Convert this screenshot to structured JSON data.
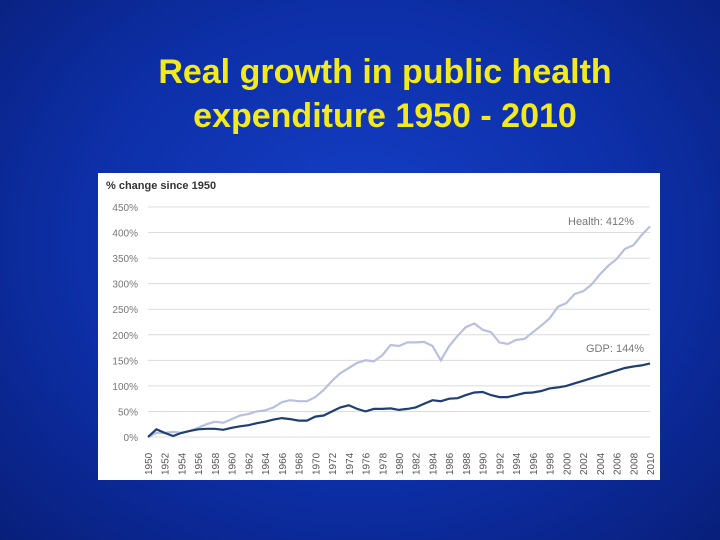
{
  "title": {
    "line1": "Real growth in public health",
    "line2": "expenditure 1950 - 2010"
  },
  "colors": {
    "title": "#f2ea1c",
    "health_line": "#b8c0dd",
    "gdp_line": "#1f3f73",
    "grid": "#dcdcdc"
  },
  "chart_data": {
    "type": "line",
    "title": "Real growth in public health expenditure 1950 - 2010",
    "ylabel": "% change since 1950",
    "xlabel": "",
    "ylim": [
      0,
      450
    ],
    "yticks": [
      0,
      50,
      100,
      150,
      200,
      250,
      300,
      350,
      400,
      450
    ],
    "ytick_labels": [
      "0%",
      "50%",
      "100%",
      "150%",
      "200%",
      "250%",
      "300%",
      "350%",
      "400%",
      "450%"
    ],
    "x": [
      1950,
      1951,
      1952,
      1953,
      1954,
      1955,
      1956,
      1957,
      1958,
      1959,
      1960,
      1961,
      1962,
      1963,
      1964,
      1965,
      1966,
      1967,
      1968,
      1969,
      1970,
      1971,
      1972,
      1973,
      1974,
      1975,
      1976,
      1977,
      1978,
      1979,
      1980,
      1981,
      1982,
      1983,
      1984,
      1985,
      1986,
      1987,
      1988,
      1989,
      1990,
      1991,
      1992,
      1993,
      1994,
      1995,
      1996,
      1997,
      1998,
      1999,
      2000,
      2001,
      2002,
      2003,
      2004,
      2005,
      2006,
      2007,
      2008,
      2009,
      2010
    ],
    "xtick_labels": [
      "1950",
      "1952",
      "1954",
      "1956",
      "1958",
      "1960",
      "1962",
      "1964",
      "1966",
      "1968",
      "1970",
      "1972",
      "1974",
      "1976",
      "1978",
      "1980",
      "1982",
      "1984",
      "1986",
      "1988",
      "1990",
      "1992",
      "1994",
      "1996",
      "1998",
      "2000",
      "2002",
      "2004",
      "2006",
      "2008",
      "2010"
    ],
    "series": [
      {
        "name": "Health",
        "annotation": "Health: 412%",
        "values": [
          0,
          8,
          8,
          10,
          8,
          12,
          18,
          25,
          30,
          28,
          35,
          42,
          45,
          50,
          52,
          58,
          68,
          72,
          70,
          70,
          78,
          92,
          110,
          125,
          135,
          145,
          150,
          148,
          160,
          180,
          178,
          185,
          185,
          186,
          178,
          150,
          178,
          198,
          215,
          222,
          210,
          205,
          185,
          182,
          190,
          192,
          205,
          218,
          232,
          255,
          262,
          280,
          285,
          298,
          318,
          335,
          348,
          368,
          375,
          395,
          412
        ]
      },
      {
        "name": "GDP",
        "annotation": "GDP: 144%",
        "values": [
          0,
          15,
          8,
          2,
          8,
          12,
          15,
          16,
          16,
          14,
          18,
          21,
          23,
          27,
          30,
          34,
          37,
          35,
          32,
          32,
          40,
          42,
          50,
          58,
          62,
          55,
          50,
          55,
          55,
          56,
          53,
          55,
          58,
          65,
          72,
          70,
          75,
          76,
          82,
          87,
          88,
          82,
          78,
          78,
          82,
          86,
          87,
          90,
          95,
          97,
          100,
          105,
          110,
          115,
          120,
          125,
          130,
          135,
          138,
          140,
          144
        ]
      }
    ]
  }
}
